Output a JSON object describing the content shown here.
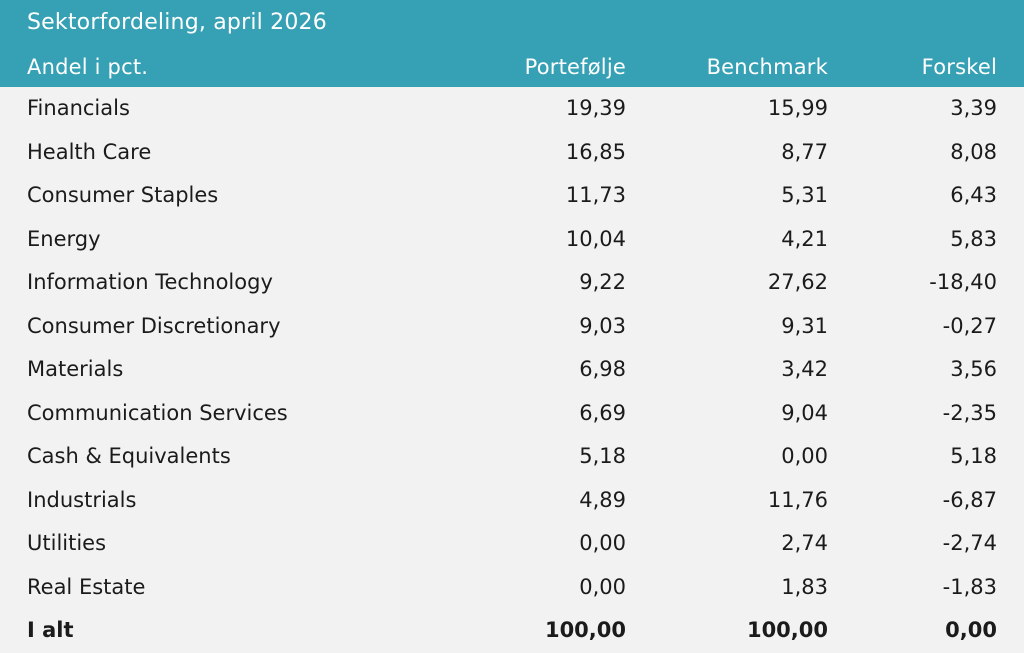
{
  "title": "Sektorfordeling, april 2026",
  "columns": [
    "Andel i pct.",
    "Portefølje",
    "Benchmark",
    "Forskel"
  ],
  "rows": [
    [
      "Financials",
      "19,39",
      "15,99",
      "3,39"
    ],
    [
      "Health Care",
      "16,85",
      "8,77",
      "8,08"
    ],
    [
      "Consumer Staples",
      "11,73",
      "5,31",
      "6,43"
    ],
    [
      "Energy",
      "10,04",
      "4,21",
      "5,83"
    ],
    [
      "Information Technology",
      "9,22",
      "27,62",
      "-18,40"
    ],
    [
      "Consumer Discretionary",
      "9,03",
      "9,31",
      "-0,27"
    ],
    [
      "Materials",
      "6,98",
      "3,42",
      "3,56"
    ],
    [
      "Communication Services",
      "6,69",
      "9,04",
      "-2,35"
    ],
    [
      "Cash & Equivalents",
      "5,18",
      "0,00",
      "5,18"
    ],
    [
      "Industrials",
      "4,89",
      "11,76",
      "-6,87"
    ],
    [
      "Utilities",
      "0,00",
      "2,74",
      "-2,74"
    ],
    [
      "Real Estate",
      "0,00",
      "1,83",
      "-1,83"
    ]
  ],
  "total": [
    "I alt",
    "100,00",
    "100,00",
    "0,00"
  ],
  "colors": {
    "header_background": "#36a0b4",
    "header_text": "#ffffff",
    "body_background": "#f2f2f2",
    "body_text": "#1b1b1b"
  }
}
